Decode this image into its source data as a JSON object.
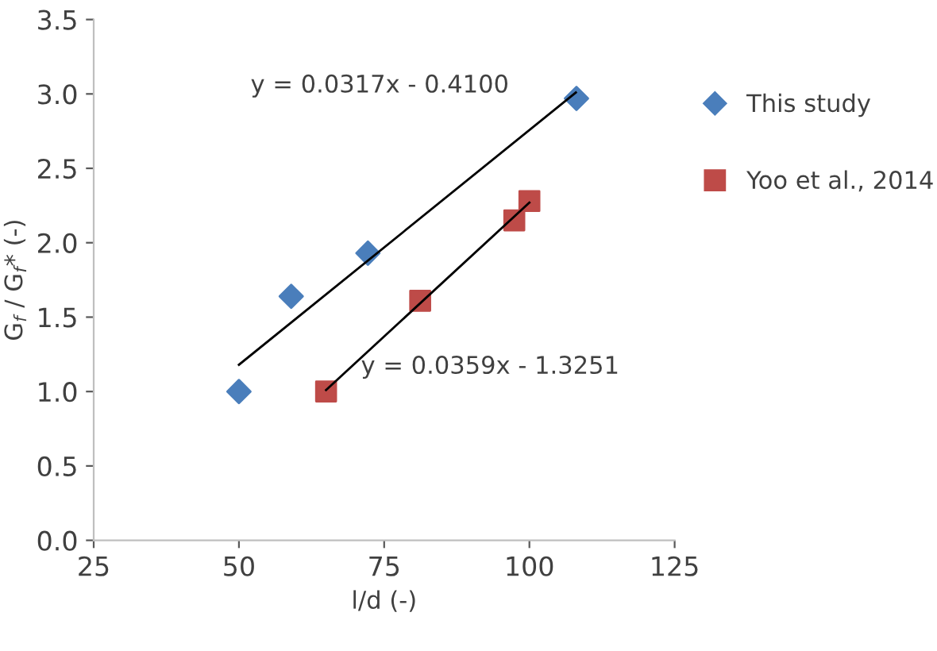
{
  "chart_data": {
    "type": "scatter",
    "xlabel": "l/d (-)",
    "ylabel": "G$_{f}$ / G$_{f}$* (-)",
    "xlim": [
      25,
      125
    ],
    "xticks": [
      25,
      50,
      75,
      100,
      125
    ],
    "ylim": [
      0,
      3.5
    ],
    "yticks": [
      {
        "value": 0,
        "label": "0.0"
      },
      {
        "value": 0.5,
        "label": "0.5"
      },
      {
        "value": 1,
        "label": "1.0"
      },
      {
        "value": 1.5,
        "label": "1.5"
      },
      {
        "value": 2,
        "label": "2.0"
      },
      {
        "value": 2.5,
        "label": "2.5"
      },
      {
        "value": 3,
        "label": "3.0"
      },
      {
        "value": 3.5,
        "label": "3.5"
      }
    ],
    "grid": false,
    "legend": "right",
    "series": [
      {
        "name": "This study",
        "marker": "diamond",
        "color": "#4a7ebb",
        "x": [
          50,
          59,
          72.2,
          108.1
        ],
        "values": [
          1.0,
          1.64,
          1.93,
          2.97
        ]
      },
      {
        "name": "Yoo et al., 2014",
        "marker": "square",
        "color": "#be4b48",
        "x": [
          65,
          81.2,
          97.4,
          100
        ],
        "values": [
          1.0,
          1.61,
          2.15,
          2.28
        ]
      },
      {
        "type": "line",
        "marker": "none",
        "color": "#000000",
        "x": [
          50,
          108
        ],
        "values": [
          1.18,
          3.01
        ]
      },
      {
        "type": "line",
        "marker": "none",
        "color": "#000000",
        "x": [
          65,
          100
        ],
        "values": [
          1.01,
          2.27
        ]
      }
    ],
    "annotations": [
      "y = 0.0317x - 0.4100",
      "y = 0.0359x - 1.3251"
    ]
  }
}
